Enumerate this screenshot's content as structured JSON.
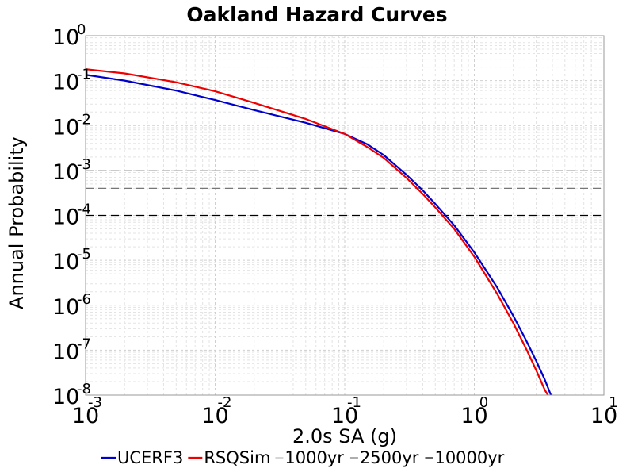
{
  "chart_data": {
    "type": "line",
    "title": "Oakland Hazard Curves",
    "xlabel": "2.0s SA (g)",
    "ylabel": "Annual Probability",
    "xscale": "log",
    "yscale": "log",
    "xlim": [
      0.001,
      10
    ],
    "ylim": [
      1e-08,
      1
    ],
    "x_ticks": [
      {
        "base": "10",
        "exp": "-3",
        "value": 0.001
      },
      {
        "base": "10",
        "exp": "-2",
        "value": 0.01
      },
      {
        "base": "10",
        "exp": "-1",
        "value": 0.1
      },
      {
        "base": "10",
        "exp": "0",
        "value": 1
      },
      {
        "base": "10",
        "exp": "1",
        "value": 10
      }
    ],
    "y_ticks": [
      {
        "base": "10",
        "exp": "0",
        "value": 1
      },
      {
        "base": "10",
        "exp": "-1",
        "value": 0.1
      },
      {
        "base": "10",
        "exp": "-2",
        "value": 0.01
      },
      {
        "base": "10",
        "exp": "-3",
        "value": 0.001
      },
      {
        "base": "10",
        "exp": "-4",
        "value": 0.0001
      },
      {
        "base": "10",
        "exp": "-5",
        "value": 1e-05
      },
      {
        "base": "10",
        "exp": "-6",
        "value": 1e-06
      },
      {
        "base": "10",
        "exp": "-7",
        "value": 1e-07
      },
      {
        "base": "10",
        "exp": "-8",
        "value": 1e-08
      }
    ],
    "grid": true,
    "legend_position": "bottom",
    "series": [
      {
        "name": "UCERF3",
        "color": "#0000cc",
        "style": "solid",
        "x": [
          0.001,
          0.002,
          0.005,
          0.01,
          0.02,
          0.05,
          0.1,
          0.15,
          0.2,
          0.3,
          0.4,
          0.5,
          0.7,
          1.0,
          1.5,
          2.0,
          2.5,
          3.0,
          3.5,
          3.9
        ],
        "y": [
          0.135,
          0.1,
          0.06,
          0.037,
          0.022,
          0.0115,
          0.0065,
          0.0038,
          0.0022,
          0.0008,
          0.00036,
          0.00018,
          6e-05,
          1.5e-05,
          2.5e-06,
          5.8e-07,
          1.7e-07,
          5.8e-08,
          2.2e-08,
          1e-08
        ]
      },
      {
        "name": "RSQSim",
        "color": "#ee0000",
        "style": "solid",
        "x": [
          0.001,
          0.002,
          0.005,
          0.01,
          0.02,
          0.05,
          0.1,
          0.15,
          0.2,
          0.3,
          0.4,
          0.5,
          0.7,
          1.0,
          1.5,
          2.0,
          2.5,
          3.0,
          3.5,
          3.7
        ],
        "y": [
          0.18,
          0.145,
          0.092,
          0.058,
          0.032,
          0.014,
          0.0065,
          0.0033,
          0.0019,
          0.00068,
          0.0003,
          0.00015,
          5e-05,
          1.2e-05,
          1.8e-06,
          4e-07,
          1.1e-07,
          3.6e-08,
          1.3e-08,
          1e-08
        ]
      },
      {
        "name": "1000yr",
        "color": "#bbbbbb",
        "style": "dashed",
        "x": [
          0.001,
          10
        ],
        "y": [
          0.001,
          0.001
        ]
      },
      {
        "name": "2500yr",
        "color": "#777777",
        "style": "dashed",
        "x": [
          0.001,
          10
        ],
        "y": [
          0.0004,
          0.0004
        ]
      },
      {
        "name": "10000yr",
        "color": "#000000",
        "style": "dashed",
        "x": [
          0.001,
          10
        ],
        "y": [
          0.0001,
          0.0001
        ]
      }
    ]
  }
}
